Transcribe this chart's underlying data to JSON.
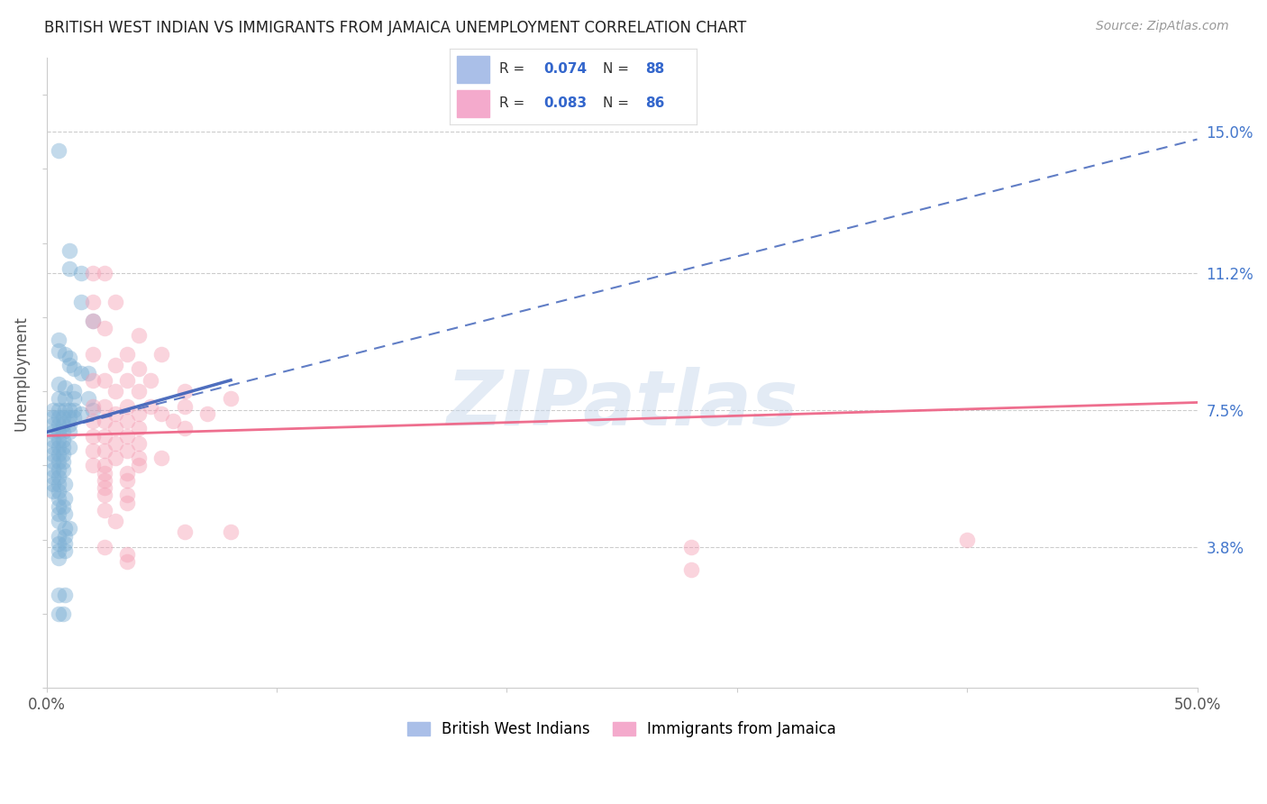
{
  "title": "BRITISH WEST INDIAN VS IMMIGRANTS FROM JAMAICA UNEMPLOYMENT CORRELATION CHART",
  "source": "Source: ZipAtlas.com",
  "ylabel": "Unemployment",
  "ytick_labels": [
    "15.0%",
    "11.2%",
    "7.5%",
    "3.8%"
  ],
  "ytick_values": [
    0.15,
    0.112,
    0.075,
    0.038
  ],
  "xlim": [
    0.0,
    0.5
  ],
  "ylim": [
    0.0,
    0.17
  ],
  "legend_label1": "British West Indians",
  "legend_label2": "Immigrants from Jamaica",
  "watermark": "ZIPatlas",
  "blue_color": "#7BAFD4",
  "pink_color": "#F4A0B5",
  "blue_line_color": "#4466BB",
  "pink_line_color": "#EE6688",
  "blue_trendline": [
    0.0,
    0.069,
    0.5,
    0.148
  ],
  "pink_trendline": [
    0.0,
    0.068,
    0.5,
    0.077
  ],
  "blue_scatter": [
    [
      0.005,
      0.145
    ],
    [
      0.01,
      0.118
    ],
    [
      0.01,
      0.113
    ],
    [
      0.015,
      0.112
    ],
    [
      0.015,
      0.104
    ],
    [
      0.02,
      0.099
    ],
    [
      0.005,
      0.094
    ],
    [
      0.005,
      0.091
    ],
    [
      0.008,
      0.09
    ],
    [
      0.01,
      0.089
    ],
    [
      0.01,
      0.087
    ],
    [
      0.012,
      0.086
    ],
    [
      0.015,
      0.085
    ],
    [
      0.018,
      0.085
    ],
    [
      0.005,
      0.082
    ],
    [
      0.008,
      0.081
    ],
    [
      0.012,
      0.08
    ],
    [
      0.005,
      0.078
    ],
    [
      0.008,
      0.078
    ],
    [
      0.012,
      0.078
    ],
    [
      0.018,
      0.078
    ],
    [
      0.003,
      0.075
    ],
    [
      0.005,
      0.075
    ],
    [
      0.008,
      0.075
    ],
    [
      0.01,
      0.075
    ],
    [
      0.012,
      0.075
    ],
    [
      0.015,
      0.074
    ],
    [
      0.02,
      0.075
    ],
    [
      0.003,
      0.073
    ],
    [
      0.005,
      0.073
    ],
    [
      0.007,
      0.073
    ],
    [
      0.01,
      0.073
    ],
    [
      0.012,
      0.073
    ],
    [
      0.003,
      0.071
    ],
    [
      0.005,
      0.071
    ],
    [
      0.007,
      0.071
    ],
    [
      0.01,
      0.071
    ],
    [
      0.003,
      0.069
    ],
    [
      0.005,
      0.069
    ],
    [
      0.007,
      0.069
    ],
    [
      0.01,
      0.069
    ],
    [
      0.003,
      0.067
    ],
    [
      0.005,
      0.067
    ],
    [
      0.007,
      0.067
    ],
    [
      0.003,
      0.065
    ],
    [
      0.005,
      0.065
    ],
    [
      0.007,
      0.065
    ],
    [
      0.01,
      0.065
    ],
    [
      0.003,
      0.063
    ],
    [
      0.005,
      0.063
    ],
    [
      0.007,
      0.063
    ],
    [
      0.003,
      0.061
    ],
    [
      0.005,
      0.061
    ],
    [
      0.007,
      0.061
    ],
    [
      0.003,
      0.059
    ],
    [
      0.005,
      0.059
    ],
    [
      0.007,
      0.059
    ],
    [
      0.003,
      0.057
    ],
    [
      0.005,
      0.057
    ],
    [
      0.003,
      0.055
    ],
    [
      0.005,
      0.055
    ],
    [
      0.008,
      0.055
    ],
    [
      0.003,
      0.053
    ],
    [
      0.005,
      0.053
    ],
    [
      0.005,
      0.051
    ],
    [
      0.008,
      0.051
    ],
    [
      0.005,
      0.049
    ],
    [
      0.007,
      0.049
    ],
    [
      0.005,
      0.047
    ],
    [
      0.008,
      0.047
    ],
    [
      0.005,
      0.045
    ],
    [
      0.008,
      0.043
    ],
    [
      0.01,
      0.043
    ],
    [
      0.005,
      0.041
    ],
    [
      0.008,
      0.041
    ],
    [
      0.005,
      0.039
    ],
    [
      0.008,
      0.039
    ],
    [
      0.005,
      0.037
    ],
    [
      0.008,
      0.037
    ],
    [
      0.005,
      0.035
    ],
    [
      0.005,
      0.025
    ],
    [
      0.008,
      0.025
    ],
    [
      0.005,
      0.02
    ],
    [
      0.007,
      0.02
    ]
  ],
  "pink_scatter": [
    [
      0.02,
      0.112
    ],
    [
      0.025,
      0.112
    ],
    [
      0.02,
      0.104
    ],
    [
      0.03,
      0.104
    ],
    [
      0.02,
      0.099
    ],
    [
      0.025,
      0.097
    ],
    [
      0.04,
      0.095
    ],
    [
      0.02,
      0.09
    ],
    [
      0.035,
      0.09
    ],
    [
      0.05,
      0.09
    ],
    [
      0.03,
      0.087
    ],
    [
      0.04,
      0.086
    ],
    [
      0.02,
      0.083
    ],
    [
      0.025,
      0.083
    ],
    [
      0.035,
      0.083
    ],
    [
      0.045,
      0.083
    ],
    [
      0.03,
      0.08
    ],
    [
      0.04,
      0.08
    ],
    [
      0.06,
      0.08
    ],
    [
      0.08,
      0.078
    ],
    [
      0.02,
      0.076
    ],
    [
      0.025,
      0.076
    ],
    [
      0.035,
      0.076
    ],
    [
      0.045,
      0.076
    ],
    [
      0.06,
      0.076
    ],
    [
      0.03,
      0.074
    ],
    [
      0.04,
      0.074
    ],
    [
      0.05,
      0.074
    ],
    [
      0.07,
      0.074
    ],
    [
      0.02,
      0.072
    ],
    [
      0.025,
      0.072
    ],
    [
      0.035,
      0.072
    ],
    [
      0.055,
      0.072
    ],
    [
      0.03,
      0.07
    ],
    [
      0.04,
      0.07
    ],
    [
      0.06,
      0.07
    ],
    [
      0.02,
      0.068
    ],
    [
      0.025,
      0.068
    ],
    [
      0.035,
      0.068
    ],
    [
      0.03,
      0.066
    ],
    [
      0.04,
      0.066
    ],
    [
      0.02,
      0.064
    ],
    [
      0.025,
      0.064
    ],
    [
      0.035,
      0.064
    ],
    [
      0.03,
      0.062
    ],
    [
      0.04,
      0.062
    ],
    [
      0.05,
      0.062
    ],
    [
      0.02,
      0.06
    ],
    [
      0.025,
      0.06
    ],
    [
      0.04,
      0.06
    ],
    [
      0.025,
      0.058
    ],
    [
      0.035,
      0.058
    ],
    [
      0.025,
      0.056
    ],
    [
      0.035,
      0.056
    ],
    [
      0.025,
      0.054
    ],
    [
      0.025,
      0.052
    ],
    [
      0.035,
      0.052
    ],
    [
      0.035,
      0.05
    ],
    [
      0.025,
      0.048
    ],
    [
      0.03,
      0.045
    ],
    [
      0.06,
      0.042
    ],
    [
      0.08,
      0.042
    ],
    [
      0.025,
      0.038
    ],
    [
      0.035,
      0.036
    ],
    [
      0.28,
      0.038
    ],
    [
      0.035,
      0.034
    ],
    [
      0.28,
      0.032
    ],
    [
      0.4,
      0.04
    ]
  ]
}
